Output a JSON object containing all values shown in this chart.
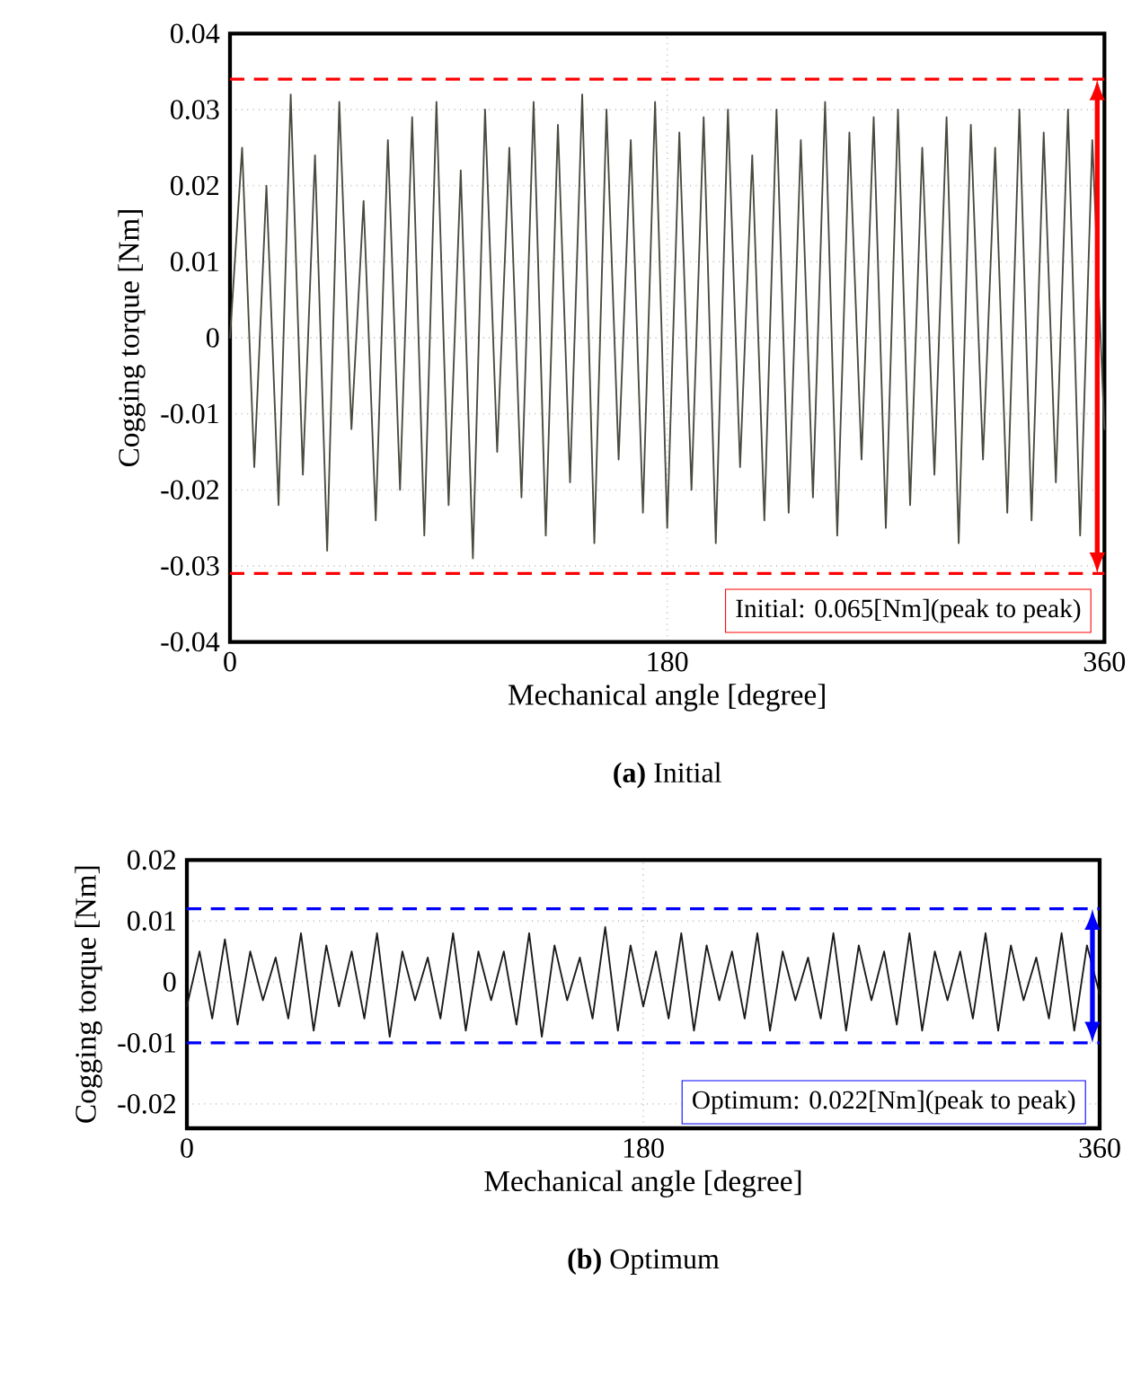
{
  "chart_data": [
    {
      "type": "line",
      "title": "**(a)** Initial",
      "xlabel": "Mechanical angle [degree]",
      "ylabel": "Cogging torque [Nm]",
      "xlim": [
        0,
        360
      ],
      "xticks": [
        0,
        180,
        360
      ],
      "ylim": [
        -0.04,
        0.04
      ],
      "yticks": [
        -0.04,
        -0.03,
        -0.02,
        -0.01,
        0,
        0.01,
        0.02,
        0.03,
        0.04
      ],
      "grid": true,
      "annotations": [
        "Initial: 0.065[Nm](peak to peak)"
      ],
      "ref_lines": [
        {
          "axis": "y",
          "value": 0.034,
          "color": "#ff0000",
          "line_style": "dashed"
        },
        {
          "axis": "y",
          "value": -0.031,
          "color": "#ff0000",
          "line_style": "dashed"
        }
      ],
      "x": [
        0,
        5,
        10,
        15,
        20,
        25,
        30,
        35,
        40,
        45,
        50,
        55,
        60,
        65,
        70,
        75,
        80,
        85,
        90,
        95,
        100,
        105,
        110,
        115,
        120,
        125,
        130,
        135,
        140,
        145,
        150,
        155,
        160,
        165,
        170,
        175,
        180,
        185,
        190,
        195,
        200,
        205,
        210,
        215,
        220,
        225,
        230,
        235,
        240,
        245,
        250,
        255,
        260,
        265,
        270,
        275,
        280,
        285,
        290,
        295,
        300,
        305,
        310,
        315,
        320,
        325,
        330,
        335,
        340,
        345,
        350,
        355,
        360
      ],
      "series": [
        {
          "color": "#4a4a40",
          "values": [
            0.0,
            0.025,
            -0.017,
            0.02,
            -0.022,
            0.032,
            -0.018,
            0.024,
            -0.028,
            0.031,
            -0.012,
            0.018,
            -0.024,
            0.026,
            -0.02,
            0.029,
            -0.026,
            0.031,
            -0.022,
            0.022,
            -0.029,
            0.03,
            -0.015,
            0.025,
            -0.021,
            0.031,
            -0.026,
            0.028,
            -0.019,
            0.032,
            -0.027,
            0.03,
            -0.016,
            0.026,
            -0.023,
            0.031,
            -0.025,
            0.027,
            -0.02,
            0.029,
            -0.027,
            0.03,
            -0.017,
            0.024,
            -0.024,
            0.03,
            -0.023,
            0.026,
            -0.021,
            0.031,
            -0.026,
            0.027,
            -0.016,
            0.029,
            -0.025,
            0.03,
            -0.022,
            0.025,
            -0.018,
            0.029,
            -0.027,
            0.028,
            -0.016,
            0.025,
            -0.023,
            0.03,
            -0.024,
            0.027,
            -0.019,
            0.03,
            -0.026,
            0.026,
            -0.012
          ]
        }
      ]
    },
    {
      "type": "line",
      "title": "**(b)** Optimum",
      "xlabel": "Mechanical angle [degree]",
      "ylabel": "Cogging torque [Nm]",
      "xlim": [
        0,
        360
      ],
      "xticks": [
        0,
        180,
        360
      ],
      "ylim": [
        -0.024,
        0.02
      ],
      "yticks": [
        -0.02,
        -0.01,
        0,
        0.01,
        0.02
      ],
      "grid": true,
      "annotations": [
        "Optimum: 0.022[Nm](peak to peak)"
      ],
      "ref_lines": [
        {
          "axis": "y",
          "value": 0.012,
          "color": "#0000ff",
          "line_style": "dashed"
        },
        {
          "axis": "y",
          "value": -0.01,
          "color": "#0000ff",
          "line_style": "dashed"
        }
      ],
      "x": [
        0,
        5,
        10,
        15,
        20,
        25,
        30,
        35,
        40,
        45,
        50,
        55,
        60,
        65,
        70,
        75,
        80,
        85,
        90,
        95,
        100,
        105,
        110,
        115,
        120,
        125,
        130,
        135,
        140,
        145,
        150,
        155,
        160,
        165,
        170,
        175,
        180,
        185,
        190,
        195,
        200,
        205,
        210,
        215,
        220,
        225,
        230,
        235,
        240,
        245,
        250,
        255,
        260,
        265,
        270,
        275,
        280,
        285,
        290,
        295,
        300,
        305,
        310,
        315,
        320,
        325,
        330,
        335,
        340,
        345,
        350,
        355,
        360
      ],
      "series": [
        {
          "color": "#1a1a1a",
          "values": [
            -0.004,
            0.005,
            -0.006,
            0.007,
            -0.007,
            0.005,
            -0.003,
            0.004,
            -0.006,
            0.008,
            -0.008,
            0.006,
            -0.004,
            0.005,
            -0.006,
            0.008,
            -0.009,
            0.005,
            -0.003,
            0.004,
            -0.006,
            0.008,
            -0.008,
            0.005,
            -0.003,
            0.005,
            -0.007,
            0.008,
            -0.009,
            0.006,
            -0.003,
            0.004,
            -0.006,
            0.009,
            -0.008,
            0.006,
            -0.004,
            0.005,
            -0.006,
            0.008,
            -0.008,
            0.006,
            -0.003,
            0.005,
            -0.006,
            0.008,
            -0.008,
            0.005,
            -0.003,
            0.004,
            -0.006,
            0.008,
            -0.008,
            0.006,
            -0.003,
            0.005,
            -0.007,
            0.008,
            -0.008,
            0.005,
            -0.003,
            0.005,
            -0.006,
            0.008,
            -0.008,
            0.006,
            -0.003,
            0.004,
            -0.006,
            0.008,
            -0.008,
            0.006,
            -0.002
          ]
        }
      ]
    }
  ]
}
